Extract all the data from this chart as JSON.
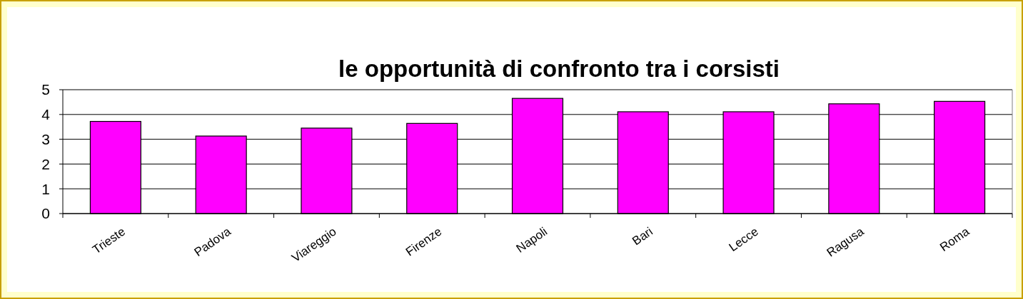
{
  "chart_data": {
    "type": "bar",
    "title": "le opportunità di confronto tra i corsisti",
    "categories": [
      "Trieste",
      "Padova",
      "Viareggio",
      "Firenze",
      "Napoli",
      "Bari",
      "Lecce",
      "Ragusa",
      "Roma"
    ],
    "values": [
      3.72,
      3.13,
      3.45,
      3.64,
      4.65,
      4.11,
      4.11,
      4.43,
      4.53
    ],
    "color": "#ff00ff",
    "ylim": [
      0,
      5
    ],
    "yticks": [
      0,
      1,
      2,
      3,
      4,
      5
    ],
    "grid": "y"
  }
}
